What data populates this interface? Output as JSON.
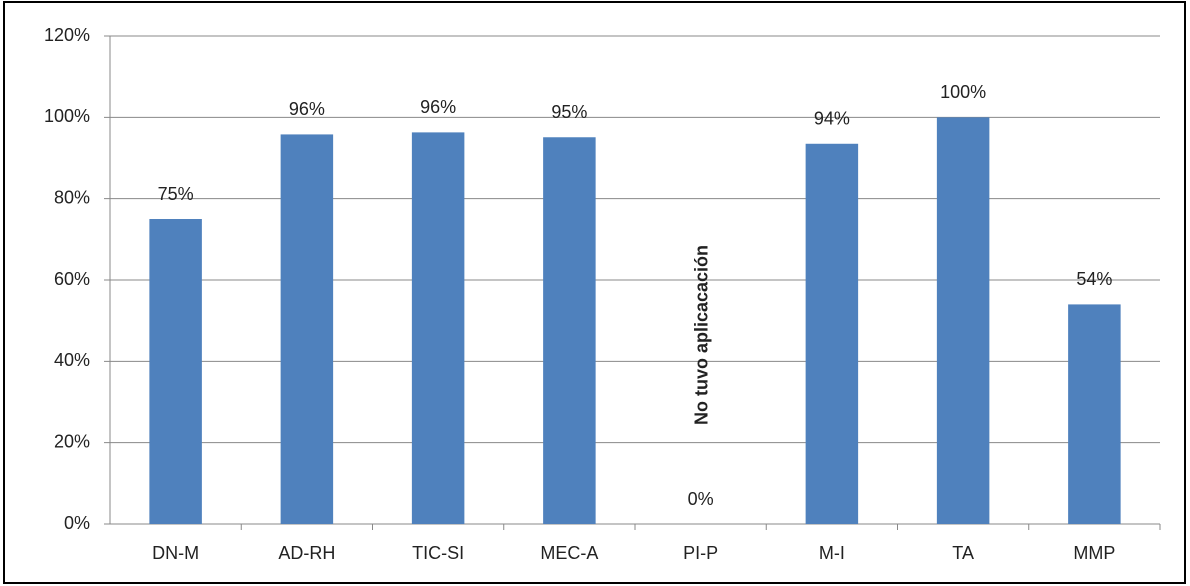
{
  "chart_data": {
    "type": "bar",
    "categories": [
      "DN-M",
      "AD-RH",
      "TIC-SI",
      "MEC-A",
      "PI-P",
      "M-I",
      "TA",
      "MMP"
    ],
    "values": [
      75,
      95.8,
      96.3,
      95.1,
      0,
      93.5,
      100,
      54
    ],
    "value_labels": [
      "75%",
      "96%",
      "96%",
      "95%",
      "0%",
      "94%",
      "100%",
      "54%"
    ],
    "color": "#4f81bd",
    "ylim": [
      0,
      120
    ],
    "yticks": [
      {
        "value": 0,
        "label": "0%"
      },
      {
        "value": 20,
        "label": "20%"
      },
      {
        "value": 40,
        "label": "40%"
      },
      {
        "value": 60,
        "label": "60%"
      },
      {
        "value": 80,
        "label": "80%"
      },
      {
        "value": 100,
        "label": "100%"
      },
      {
        "value": 120,
        "label": "120%"
      }
    ],
    "grid": true,
    "annotations": [
      {
        "text": "No tuvo aplicacación",
        "category": "PI-P"
      }
    ]
  }
}
